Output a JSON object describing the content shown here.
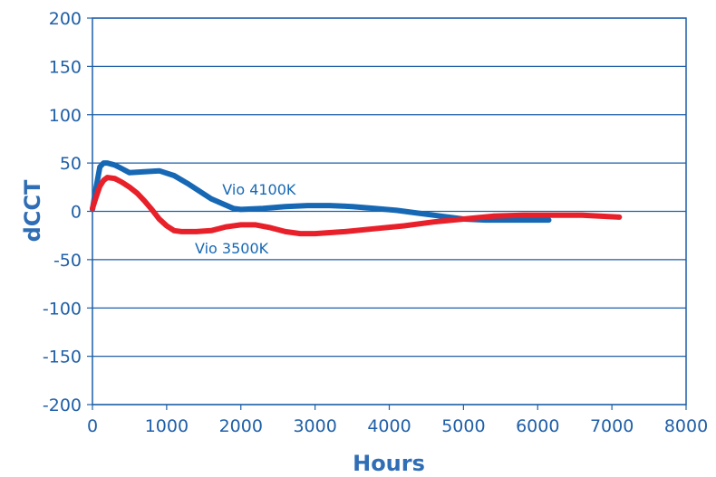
{
  "chart_data": {
    "type": "line",
    "title": "",
    "xlabel": "Hours",
    "ylabel": "dCCT",
    "xlim": [
      0,
      8000
    ],
    "ylim": [
      -200,
      200
    ],
    "xticks": [
      "0",
      "1000",
      "2000",
      "3000",
      "4000",
      "5000",
      "6000",
      "7000",
      "8000"
    ],
    "yticks": [
      "200",
      "150",
      "100",
      "50",
      "0",
      "-50",
      "-100",
      "-150",
      "-200"
    ],
    "grid": "horizontal",
    "legend": "none (inline labels)",
    "series": [
      {
        "name": "Vio 4100K",
        "color": "#1668b5",
        "x": [
          0,
          50,
          100,
          150,
          200,
          300,
          400,
          500,
          700,
          900,
          1100,
          1300,
          1600,
          1900,
          2000,
          2300,
          2600,
          2900,
          3200,
          3500,
          3800,
          4100,
          4400,
          4700,
          5000,
          5300,
          5600,
          5900,
          6150
        ],
        "y": [
          2,
          25,
          46,
          50,
          50,
          48,
          44,
          40,
          41,
          42,
          37,
          28,
          13,
          3,
          2,
          3,
          5,
          6,
          6,
          5,
          3,
          1,
          -2,
          -5,
          -8,
          -9,
          -9,
          -9,
          -9
        ]
      },
      {
        "name": "Vio 3500K",
        "color": "#e8202a",
        "x": [
          0,
          50,
          100,
          150,
          200,
          300,
          400,
          500,
          600,
          700,
          800,
          900,
          1000,
          1100,
          1200,
          1400,
          1600,
          1800,
          2000,
          2200,
          2400,
          2600,
          2800,
          3000,
          3400,
          3800,
          4200,
          4600,
          5000,
          5400,
          5800,
          6200,
          6600,
          7100
        ],
        "y": [
          3,
          15,
          26,
          32,
          35,
          34,
          30,
          25,
          19,
          11,
          2,
          -8,
          -15,
          -20,
          -21,
          -21,
          -20,
          -16,
          -14,
          -14,
          -17,
          -21,
          -23,
          -23,
          -21,
          -18,
          -15,
          -11,
          -8,
          -5,
          -4,
          -4,
          -4,
          -6
        ]
      }
    ],
    "annotations": [
      {
        "text": "Vio 4100K",
        "x": 1750,
        "y": 23,
        "color": "#1668b5"
      },
      {
        "text": "Vio 3500K",
        "x": 1380,
        "y": -38,
        "color": "#1668b5"
      }
    ]
  }
}
